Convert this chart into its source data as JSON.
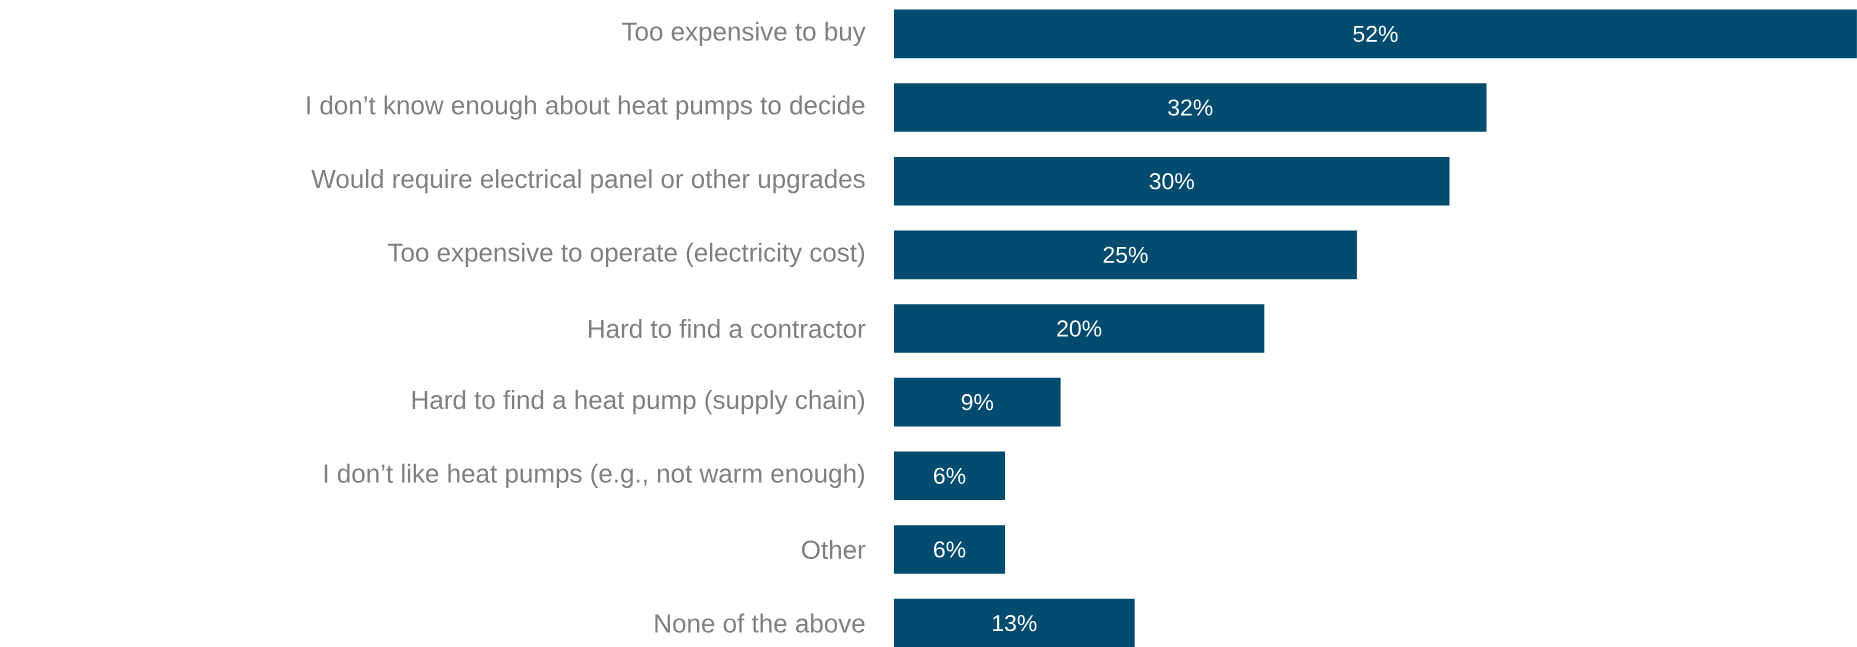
{
  "chart_data": {
    "type": "bar",
    "orientation": "horizontal",
    "categories": [
      "Too expensive to buy",
      "I don’t know enough about heat pumps to decide",
      "Would require electrical panel or other upgrades",
      "Too expensive to operate (electricity cost)",
      "Hard to find a contractor",
      "Hard to find a heat pump (supply chain)",
      "I don’t like heat pumps (e.g., not warm enough)",
      "Other",
      "None of the above"
    ],
    "values": [
      52,
      32,
      30,
      25,
      20,
      9,
      6,
      6,
      13
    ],
    "value_labels": [
      "52%",
      "32%",
      "30%",
      "25%",
      "20%",
      "9%",
      "6%",
      "6%",
      "13%"
    ],
    "color": "#004b6e",
    "xlim": [
      0,
      52
    ],
    "tick_labels": "y"
  }
}
